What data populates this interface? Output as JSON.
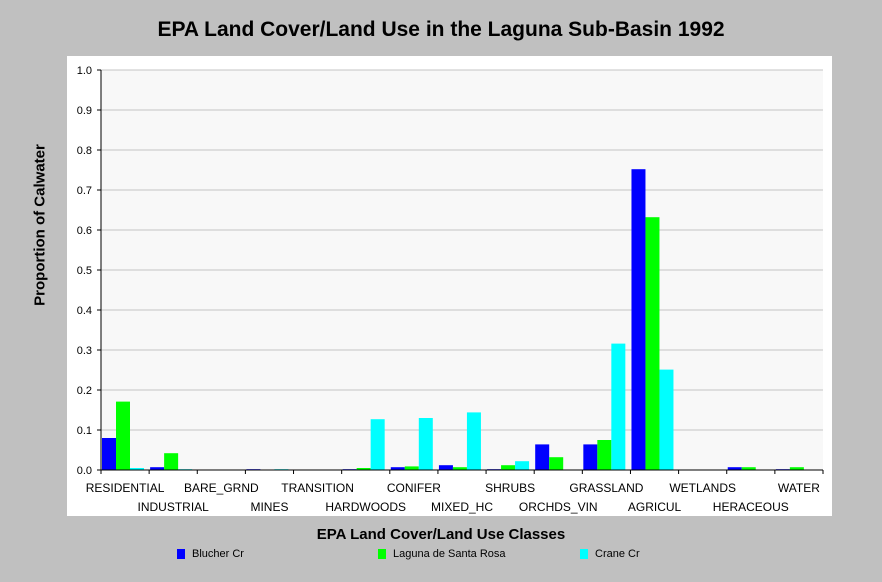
{
  "chart_data": {
    "type": "bar",
    "title": "EPA Land Cover/Land Use in the Laguna Sub-Basin 1992",
    "xlabel": "EPA Land Cover/Land Use Classes",
    "ylabel": "Proportion of Calwater",
    "ylim": [
      0,
      1.0
    ],
    "yticks": [
      "0.0",
      "0.1",
      "0.2",
      "0.3",
      "0.4",
      "0.5",
      "0.6",
      "0.7",
      "0.8",
      "0.9",
      "1.0"
    ],
    "grid": true,
    "legend_position": "bottom",
    "categories": [
      "RESIDENTIAL",
      "INDUSTRIAL",
      "BARE_GRND",
      "MINES",
      "TRANSITION",
      "HARDWOODS",
      "CONIFER",
      "MIXED_HC",
      "SHRUBS",
      "ORCHDS_VIN",
      "GRASSLAND",
      "AGRICUL",
      "WETLANDS",
      "HERACEOUS",
      "WATER"
    ],
    "series": [
      {
        "name": "Blucher Cr",
        "color": "#0000ff",
        "values": [
          0.08,
          0.007,
          0,
          0.002,
          0,
          0.002,
          0.007,
          0.012,
          0.002,
          0.064,
          0.064,
          0.752,
          0,
          0.007,
          0.002
        ]
      },
      {
        "name": "Laguna de Santa Rosa",
        "color": "#00ff00",
        "values": [
          0.171,
          0.042,
          0,
          0.001,
          0,
          0.005,
          0.009,
          0.007,
          0.012,
          0.032,
          0.075,
          0.632,
          0,
          0.007,
          0.007
        ]
      },
      {
        "name": "Crane Cr",
        "color": "#00ffff",
        "values": [
          0.005,
          0.002,
          0,
          0.002,
          0,
          0.127,
          0.13,
          0.144,
          0.022,
          0,
          0.316,
          0.251,
          0,
          0,
          0
        ]
      }
    ]
  }
}
